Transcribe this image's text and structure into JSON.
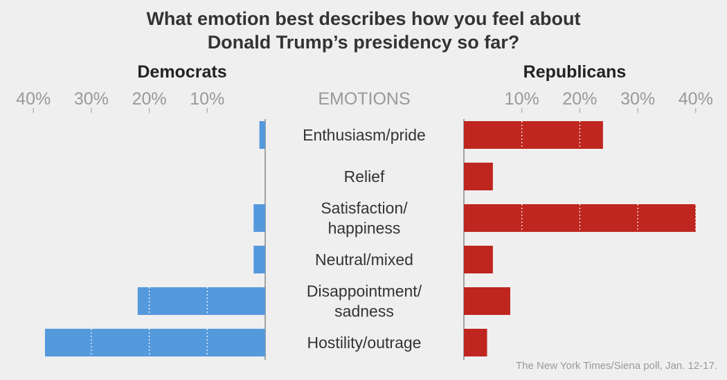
{
  "chart_data": {
    "type": "bar",
    "title": [
      "What emotion best describes how you feel about",
      "Donald Trump’s presidency so far?"
    ],
    "center_label": "EMOTIONS",
    "categories": [
      [
        "Enthusiasm/pride"
      ],
      [
        "Relief"
      ],
      [
        "Satisfaction/",
        "happiness"
      ],
      [
        "Neutral/mixed"
      ],
      [
        "Disappointment/",
        "sadness"
      ],
      [
        "Hostility/outrage"
      ]
    ],
    "series": [
      {
        "name": "Democrats",
        "color": "#5599dd",
        "values": [
          1,
          0,
          2,
          2,
          22,
          38
        ]
      },
      {
        "name": "Republicans",
        "color": "#bf2620",
        "values": [
          24,
          5,
          40,
          5,
          8,
          4
        ]
      }
    ],
    "ticks": [
      10,
      20,
      30,
      40
    ],
    "tick_labels": [
      "10%",
      "20%",
      "30%",
      "40%"
    ],
    "xlim": [
      0,
      40
    ],
    "unit": "%",
    "source": "The New York Times/Siena poll, Jan. 12-17."
  }
}
